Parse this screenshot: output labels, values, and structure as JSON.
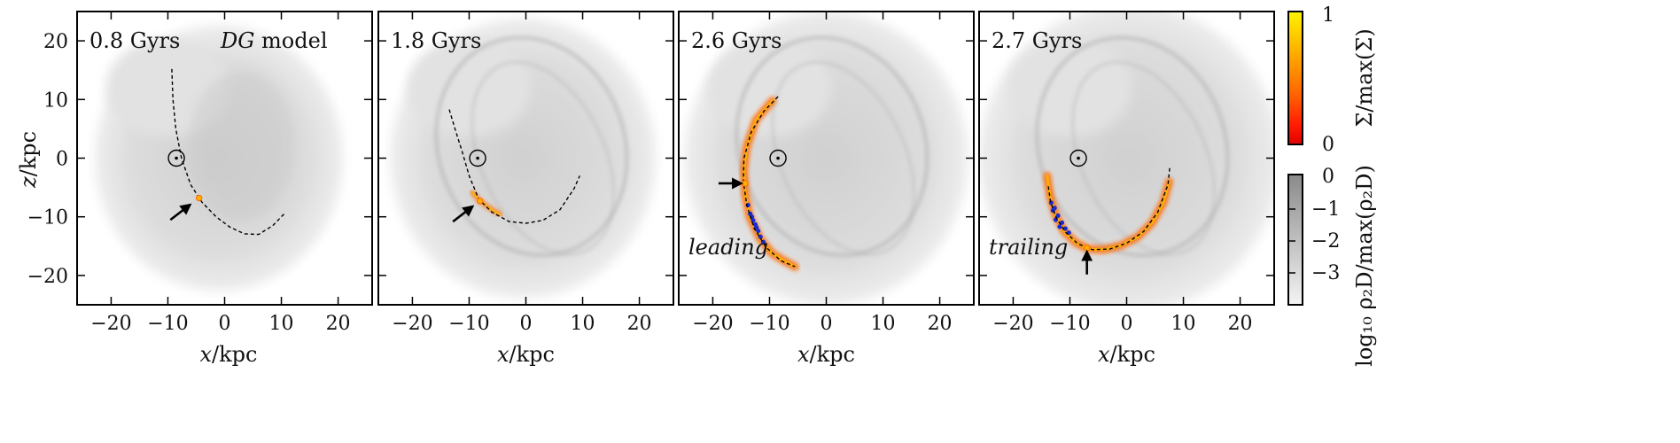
{
  "figure": {
    "x_label": "x/kpc",
    "y_label": "z/kpc",
    "colorbar_top": {
      "label": "Σ/max(Σ)",
      "ticks": [
        "1",
        "0"
      ],
      "colors": [
        "#fff200",
        "#ffb000",
        "#ff6a00",
        "#ff1e00",
        "#e00000"
      ]
    },
    "colorbar_bottom": {
      "label": "log₁₀ ρ₂D/max(ρ₂D)",
      "ticks": [
        "0",
        "−1",
        "−2",
        "−3"
      ],
      "colors": [
        "#8a8a8a",
        "#f4f4f4"
      ]
    },
    "panels": [
      {
        "time": "0.8 Gyrs",
        "model": "DG model",
        "note": ""
      },
      {
        "time": "1.8 Gyrs",
        "model": "",
        "note": ""
      },
      {
        "time": "2.6 Gyrs",
        "model": "",
        "note": "leading"
      },
      {
        "time": "2.7 Gyrs",
        "model": "",
        "note": "trailing"
      }
    ]
  },
  "chart_data": [
    {
      "type": "scatter",
      "time": "0.8 Gyrs",
      "xlim": [
        -26,
        26
      ],
      "ylim": [
        -25,
        25
      ],
      "xticks": [
        -20,
        -10,
        0,
        10,
        20
      ],
      "yticks": [
        -20,
        -10,
        0,
        10,
        20
      ],
      "sun": [
        -8.5,
        0
      ],
      "satellite": [
        -4.5,
        -6.8
      ],
      "arrow_tip": [
        -5.5,
        -7.5
      ],
      "orbit": [
        [
          -9.3,
          15.2
        ],
        [
          -9.1,
          10
        ],
        [
          -8.6,
          5
        ],
        [
          -7.6,
          0
        ],
        [
          -6,
          -4.5
        ],
        [
          -4,
          -7.5
        ],
        [
          -1.5,
          -10
        ],
        [
          1,
          -11.8
        ],
        [
          3.5,
          -12.9
        ],
        [
          6,
          -13
        ],
        [
          8.5,
          -11.5
        ],
        [
          10.5,
          -9.5
        ]
      ],
      "stream": []
    },
    {
      "type": "scatter",
      "time": "1.8 Gyrs",
      "xlim": [
        -26,
        26
      ],
      "ylim": [
        -25,
        25
      ],
      "xticks": [
        -20,
        -10,
        0,
        10,
        20
      ],
      "yticks": [
        -20,
        -10,
        0,
        10,
        20
      ],
      "sun": [
        -8.5,
        0
      ],
      "satellite": [
        -8.1,
        -7.3
      ],
      "arrow_tip": [
        -8.8,
        -7.8
      ],
      "orbit": [
        [
          -13.5,
          8.3
        ],
        [
          -12.5,
          5
        ],
        [
          -11.2,
          1
        ],
        [
          -10,
          -3
        ],
        [
          -8.3,
          -7
        ],
        [
          -6,
          -9.2
        ],
        [
          -3,
          -10.8
        ],
        [
          0,
          -11.1
        ],
        [
          3,
          -10.6
        ],
        [
          6,
          -8.8
        ],
        [
          8.5,
          -5.2
        ],
        [
          9.5,
          -3
        ]
      ],
      "stream": [
        [
          -9.5,
          -5.8
        ],
        [
          -8.1,
          -7.3
        ],
        [
          -6.3,
          -8.6
        ],
        [
          -4.5,
          -9.6
        ]
      ]
    },
    {
      "type": "scatter",
      "time": "2.6 Gyrs",
      "xlim": [
        -26,
        26
      ],
      "ylim": [
        -25,
        25
      ],
      "xticks": [
        -20,
        -10,
        0,
        10,
        20
      ],
      "yticks": [
        -20,
        -10,
        0,
        10,
        20
      ],
      "sun": [
        -8.5,
        0
      ],
      "satellite": [
        -14.3,
        -4.3
      ],
      "arrow_tip": [
        -14.3,
        -4.3
      ],
      "orbit": [
        [
          -8.5,
          10.5
        ],
        [
          -11,
          8
        ],
        [
          -13.2,
          4.5
        ],
        [
          -14.5,
          0
        ],
        [
          -14.6,
          -4
        ],
        [
          -14,
          -8
        ],
        [
          -12.7,
          -12
        ],
        [
          -10.6,
          -15.2
        ],
        [
          -8,
          -17.5
        ],
        [
          -5.5,
          -18.5
        ]
      ],
      "stream": [
        [
          -9.5,
          9.8
        ],
        [
          -12.4,
          6.5
        ],
        [
          -14,
          2
        ],
        [
          -14.5,
          -2
        ],
        [
          -14.3,
          -6
        ],
        [
          -13.5,
          -10
        ],
        [
          -11.7,
          -13.7
        ],
        [
          -9.6,
          -16.2
        ],
        [
          -7.6,
          -17.4
        ],
        [
          -5.5,
          -18.5
        ]
      ],
      "blue_points": [
        [
          -13.8,
          -8
        ],
        [
          -13.4,
          -9.5
        ],
        [
          -12.9,
          -10.6
        ],
        [
          -12.5,
          -11.3
        ],
        [
          -12,
          -12.4
        ],
        [
          -11.6,
          -13.4
        ],
        [
          -11.1,
          -14.3
        ],
        [
          -13.1,
          -10
        ],
        [
          -12.3,
          -11.8
        ]
      ]
    },
    {
      "type": "scatter",
      "time": "2.7 Gyrs",
      "xlim": [
        -26,
        26
      ],
      "ylim": [
        -25,
        25
      ],
      "xticks": [
        -20,
        -10,
        0,
        10,
        20
      ],
      "yticks": [
        -20,
        -10,
        0,
        10,
        20
      ],
      "sun": [
        -8.5,
        0
      ],
      "satellite": [
        -7,
        -15.3
      ],
      "arrow_tip": [
        -7,
        -15.3
      ],
      "orbit": [
        [
          -13.8,
          -4.8
        ],
        [
          -13.4,
          -7.5
        ],
        [
          -12.4,
          -10.2
        ],
        [
          -10.8,
          -12.6
        ],
        [
          -8.6,
          -14.6
        ],
        [
          -6,
          -15.6
        ],
        [
          -3,
          -15.5
        ],
        [
          0,
          -14.5
        ],
        [
          3,
          -12.5
        ],
        [
          5.5,
          -9.2
        ],
        [
          7.3,
          -4.5
        ],
        [
          7.6,
          -1.5
        ]
      ],
      "stream": [
        [
          -14,
          -3
        ],
        [
          -13.5,
          -6.5
        ],
        [
          -12.5,
          -9.8
        ],
        [
          -11,
          -12.5
        ],
        [
          -9,
          -14.4
        ],
        [
          -6.8,
          -15.5
        ],
        [
          -4,
          -15.6
        ],
        [
          -1,
          -14.9
        ],
        [
          2,
          -13.4
        ],
        [
          4.5,
          -11
        ],
        [
          6.5,
          -7.5
        ],
        [
          7.5,
          -4
        ]
      ],
      "blue_points": [
        [
          -13.3,
          -7.6
        ],
        [
          -12.7,
          -8.5
        ],
        [
          -12.1,
          -9.8
        ],
        [
          -11.4,
          -11
        ],
        [
          -10.8,
          -12
        ],
        [
          -10.2,
          -12.7
        ],
        [
          -12.5,
          -10.5
        ],
        [
          -11.8,
          -11.7
        ],
        [
          -13,
          -8.9
        ]
      ]
    }
  ]
}
